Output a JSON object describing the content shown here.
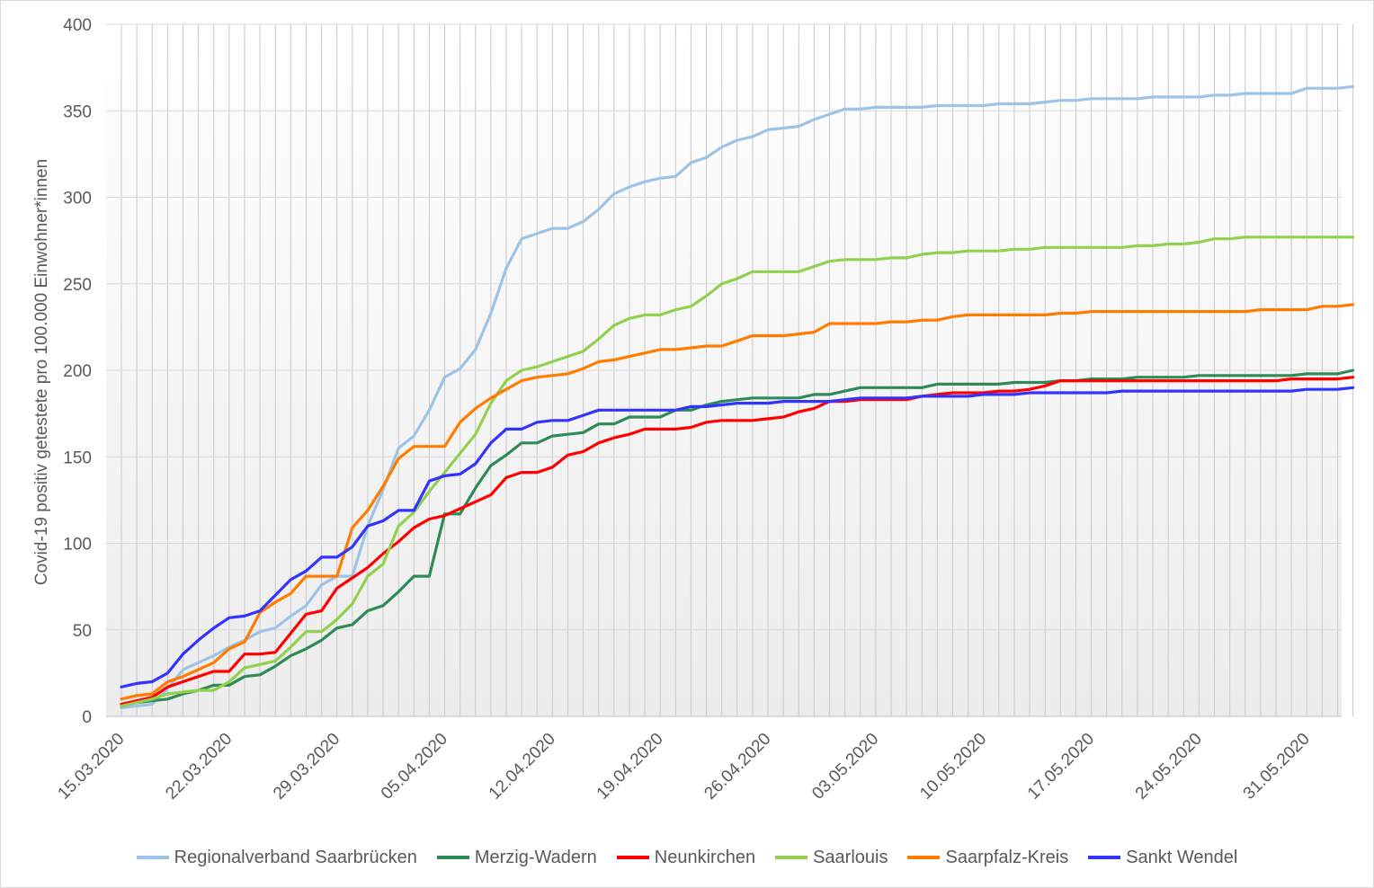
{
  "chart_data": {
    "type": "line",
    "title": "",
    "xlabel": "",
    "ylabel": "Covid-19 positiv getestete pro 100.000 Einwohner*innen",
    "ylim": [
      0,
      400
    ],
    "yticks": [
      0,
      50,
      100,
      150,
      200,
      250,
      300,
      350,
      400
    ],
    "grid": "vertical lines per day; horizontal lines per 50",
    "legend_position": "bottom",
    "x_start": "15.03.2020",
    "x_end": "01.06.2020",
    "x_tick_labels": [
      "15.03.2020",
      "22.03.2020",
      "29.03.2020",
      "05.04.2020",
      "12.04.2020",
      "19.04.2020",
      "26.04.2020",
      "03.05.2020",
      "10.05.2020",
      "17.05.2020",
      "24.05.2020",
      "31.05.2020"
    ],
    "series": [
      {
        "name": "Regionalverband Saarbrücken",
        "color": "#9dc3e6",
        "values": [
          5,
          6,
          7,
          16,
          27,
          31,
          35,
          40,
          44,
          49,
          51,
          58,
          64,
          76,
          81,
          81,
          110,
          131,
          155,
          162,
          177,
          196,
          201,
          212,
          233,
          259,
          276,
          279,
          282,
          282,
          286,
          293,
          302,
          306,
          309,
          311,
          312,
          320,
          323,
          329,
          333,
          335,
          339,
          340,
          341,
          345,
          348,
          351,
          351,
          352,
          352,
          352,
          352,
          353,
          353,
          353,
          353,
          354,
          354,
          354,
          355,
          356,
          356,
          357,
          357,
          357,
          357,
          358,
          358,
          358,
          358,
          359,
          359,
          360,
          360,
          360,
          360,
          363,
          363,
          363,
          364
        ]
      },
      {
        "name": "Merzig-Wadern",
        "color": "#2e8b57",
        "values": [
          6,
          8,
          9,
          10,
          13,
          15,
          18,
          18,
          23,
          24,
          29,
          35,
          39,
          44,
          51,
          53,
          61,
          64,
          72,
          81,
          81,
          117,
          117,
          132,
          145,
          151,
          158,
          158,
          162,
          163,
          164,
          169,
          169,
          173,
          173,
          173,
          177,
          177,
          180,
          182,
          183,
          184,
          184,
          184,
          184,
          186,
          186,
          188,
          190,
          190,
          190,
          190,
          190,
          192,
          192,
          192,
          192,
          192,
          193,
          193,
          193,
          194,
          194,
          195,
          195,
          195,
          196,
          196,
          196,
          196,
          197,
          197,
          197,
          197,
          197,
          197,
          197,
          198,
          198,
          198,
          200
        ]
      },
      {
        "name": "Neunkirchen",
        "color": "#ff0000",
        "values": [
          7,
          9,
          11,
          17,
          20,
          23,
          26,
          26,
          36,
          36,
          37,
          48,
          59,
          61,
          74,
          80,
          86,
          94,
          101,
          109,
          114,
          116,
          120,
          124,
          128,
          138,
          141,
          141,
          144,
          151,
          153,
          158,
          161,
          163,
          166,
          166,
          166,
          167,
          170,
          171,
          171,
          171,
          172,
          173,
          176,
          178,
          182,
          182,
          183,
          183,
          183,
          183,
          185,
          186,
          187,
          187,
          187,
          188,
          188,
          189,
          191,
          194,
          194,
          194,
          194,
          194,
          194,
          194,
          194,
          194,
          194,
          194,
          194,
          194,
          194,
          194,
          195,
          195,
          195,
          195,
          196
        ]
      },
      {
        "name": "Saarlouis",
        "color": "#92d050",
        "values": [
          6,
          8,
          10,
          13,
          14,
          15,
          15,
          20,
          28,
          30,
          32,
          40,
          49,
          49,
          56,
          65,
          81,
          88,
          110,
          118,
          130,
          141,
          152,
          163,
          181,
          194,
          200,
          202,
          205,
          208,
          211,
          218,
          226,
          230,
          232,
          232,
          235,
          237,
          243,
          250,
          253,
          257,
          257,
          257,
          257,
          260,
          263,
          264,
          264,
          264,
          265,
          265,
          267,
          268,
          268,
          269,
          269,
          269,
          270,
          270,
          271,
          271,
          271,
          271,
          271,
          271,
          272,
          272,
          273,
          273,
          274,
          276,
          276,
          277,
          277,
          277,
          277,
          277,
          277,
          277,
          277
        ]
      },
      {
        "name": "Saarpfalz-Kreis",
        "color": "#ff7c00",
        "values": [
          10,
          12,
          13,
          20,
          23,
          27,
          31,
          39,
          43,
          60,
          66,
          71,
          81,
          81,
          81,
          109,
          119,
          133,
          149,
          156,
          156,
          156,
          170,
          178,
          184,
          189,
          194,
          196,
          197,
          198,
          201,
          205,
          206,
          208,
          210,
          212,
          212,
          213,
          214,
          214,
          217,
          220,
          220,
          220,
          221,
          222,
          227,
          227,
          227,
          227,
          228,
          228,
          229,
          229,
          231,
          232,
          232,
          232,
          232,
          232,
          232,
          233,
          233,
          234,
          234,
          234,
          234,
          234,
          234,
          234,
          234,
          234,
          234,
          234,
          235,
          235,
          235,
          235,
          237,
          237,
          238
        ]
      },
      {
        "name": "Sankt Wendel",
        "color": "#3333ff",
        "values": [
          17,
          19,
          20,
          25,
          36,
          44,
          51,
          57,
          58,
          61,
          70,
          79,
          84,
          92,
          92,
          98,
          110,
          113,
          119,
          119,
          136,
          139,
          140,
          146,
          158,
          166,
          166,
          170,
          171,
          171,
          174,
          177,
          177,
          177,
          177,
          177,
          177,
          179,
          179,
          180,
          181,
          181,
          181,
          182,
          182,
          182,
          182,
          183,
          184,
          184,
          184,
          184,
          185,
          185,
          185,
          185,
          186,
          186,
          186,
          187,
          187,
          187,
          187,
          187,
          187,
          188,
          188,
          188,
          188,
          188,
          188,
          188,
          188,
          188,
          188,
          188,
          188,
          189,
          189,
          189,
          190
        ]
      }
    ]
  }
}
